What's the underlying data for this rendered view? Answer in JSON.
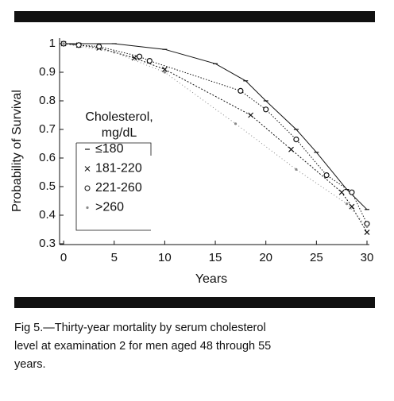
{
  "chart_data": {
    "type": "line",
    "xlabel": "Years",
    "ylabel": "Probability of Survival",
    "legend_title": [
      "Cholesterol,",
      "mg/dL"
    ],
    "xlim": [
      -0.4,
      30
    ],
    "ylim": [
      0.3,
      1
    ],
    "xticks": [
      0,
      5,
      10,
      15,
      20,
      25,
      30
    ],
    "yticks": [
      0.3,
      0.4,
      0.5,
      0.6,
      0.7,
      0.8,
      0.9,
      1
    ],
    "grid": false,
    "series": [
      {
        "name": "≤180",
        "color": "#111",
        "marker": "dash",
        "dash": "none",
        "x": [
          0,
          5,
          10,
          15,
          18,
          20,
          23,
          25,
          28,
          30
        ],
        "values": [
          1,
          1,
          0.98,
          0.93,
          0.87,
          0.8,
          0.7,
          0.62,
          0.49,
          0.42
        ]
      },
      {
        "name": "181-220",
        "color": "#111",
        "marker": "x",
        "dash": "2,2",
        "x": [
          0,
          1.5,
          3.5,
          7,
          10,
          18.5,
          22.5,
          27.5,
          28.5,
          30
        ],
        "values": [
          1,
          0.995,
          0.985,
          0.95,
          0.91,
          0.75,
          0.63,
          0.48,
          0.43,
          0.34
        ]
      },
      {
        "name": "221-260",
        "color": "#111",
        "marker": "o",
        "dash": "1.5,2",
        "x": [
          0,
          1.5,
          3.5,
          7.5,
          8.5,
          17.5,
          20,
          23,
          26,
          28.5,
          30
        ],
        "values": [
          1,
          0.995,
          0.99,
          0.955,
          0.94,
          0.835,
          0.77,
          0.665,
          0.54,
          0.48,
          0.37
        ]
      },
      {
        "name": ">260",
        "color": "#888",
        "marker": "dot",
        "dash": "1,3",
        "x": [
          0,
          5,
          10,
          17,
          23,
          28,
          30
        ],
        "values": [
          1,
          0.97,
          0.9,
          0.72,
          0.56,
          0.44,
          0.36
        ]
      }
    ],
    "caption": [
      "Fig 5.—Thirty-year mortality by serum cholesterol",
      "level at examination 2 for men aged 48 through 55",
      "years."
    ]
  }
}
